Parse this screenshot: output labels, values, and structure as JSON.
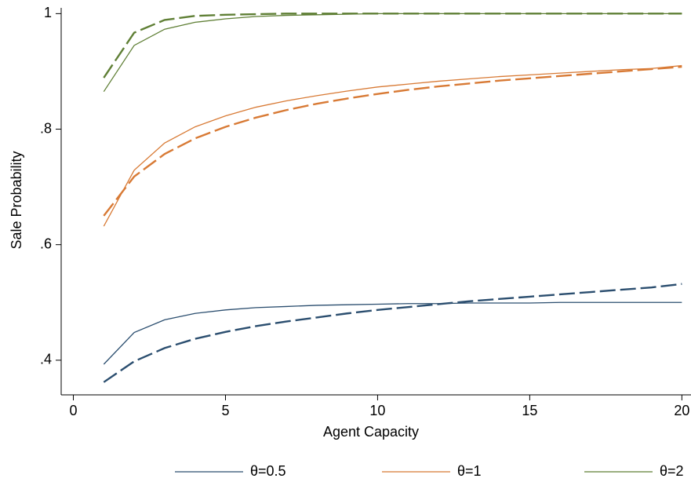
{
  "chart_data": {
    "type": "line",
    "x_label": "Agent Capacity",
    "y_label": "Sale Probability",
    "x": [
      1,
      2,
      3,
      4,
      5,
      6,
      7,
      8,
      9,
      10,
      11,
      12,
      13,
      14,
      15,
      16,
      17,
      18,
      19,
      20
    ],
    "series": [
      {
        "name": "θ=0.5",
        "color": "#2b4e6f",
        "dashed": false,
        "values": [
          0.393,
          0.448,
          0.47,
          0.481,
          0.487,
          0.491,
          0.493,
          0.495,
          0.496,
          0.497,
          0.498,
          0.498,
          0.499,
          0.499,
          0.499,
          0.5,
          0.5,
          0.5,
          0.5,
          0.5
        ]
      },
      {
        "name": "θ=1",
        "color": "#d87a35",
        "dashed": false,
        "values": [
          0.632,
          0.729,
          0.776,
          0.804,
          0.823,
          0.838,
          0.849,
          0.858,
          0.866,
          0.873,
          0.878,
          0.883,
          0.887,
          0.891,
          0.894,
          0.897,
          0.9,
          0.903,
          0.905,
          0.91
        ]
      },
      {
        "name": "θ=2",
        "color": "#5f7f35",
        "dashed": false,
        "values": [
          0.865,
          0.945,
          0.973,
          0.985,
          0.991,
          0.995,
          0.997,
          0.998,
          0.999,
          1,
          1,
          1,
          1,
          1,
          1,
          1,
          1,
          1,
          1,
          1
        ]
      },
      {
        "color": "#2b4e6f",
        "dashed": true,
        "values": [
          0.362,
          0.398,
          0.421,
          0.437,
          0.449,
          0.459,
          0.467,
          0.474,
          0.481,
          0.487,
          0.492,
          0.497,
          0.502,
          0.506,
          0.51,
          0.514,
          0.518,
          0.522,
          0.526,
          0.532
        ]
      },
      {
        "color": "#d87a35",
        "dashed": true,
        "values": [
          0.65,
          0.718,
          0.757,
          0.784,
          0.804,
          0.82,
          0.833,
          0.844,
          0.853,
          0.861,
          0.868,
          0.874,
          0.879,
          0.884,
          0.888,
          0.892,
          0.896,
          0.9,
          0.904,
          0.908
        ]
      },
      {
        "color": "#5f7f35",
        "dashed": true,
        "values": [
          0.889,
          0.967,
          0.989,
          0.996,
          0.998,
          0.999,
          1,
          1,
          1,
          1,
          1,
          1,
          1,
          1,
          1,
          1,
          1,
          1,
          1,
          1
        ]
      }
    ],
    "xlim": [
      -0.4,
      20.3
    ],
    "ylim": [
      0.34,
      1.01
    ],
    "xticks": [
      0,
      5,
      10,
      15,
      20
    ],
    "yticks": [
      {
        "value": 0.4,
        "label": ".4"
      },
      {
        "value": 0.6,
        "label": ".6"
      },
      {
        "value": 0.8,
        "label": ".8"
      },
      1
    ],
    "legend": "bottom"
  }
}
